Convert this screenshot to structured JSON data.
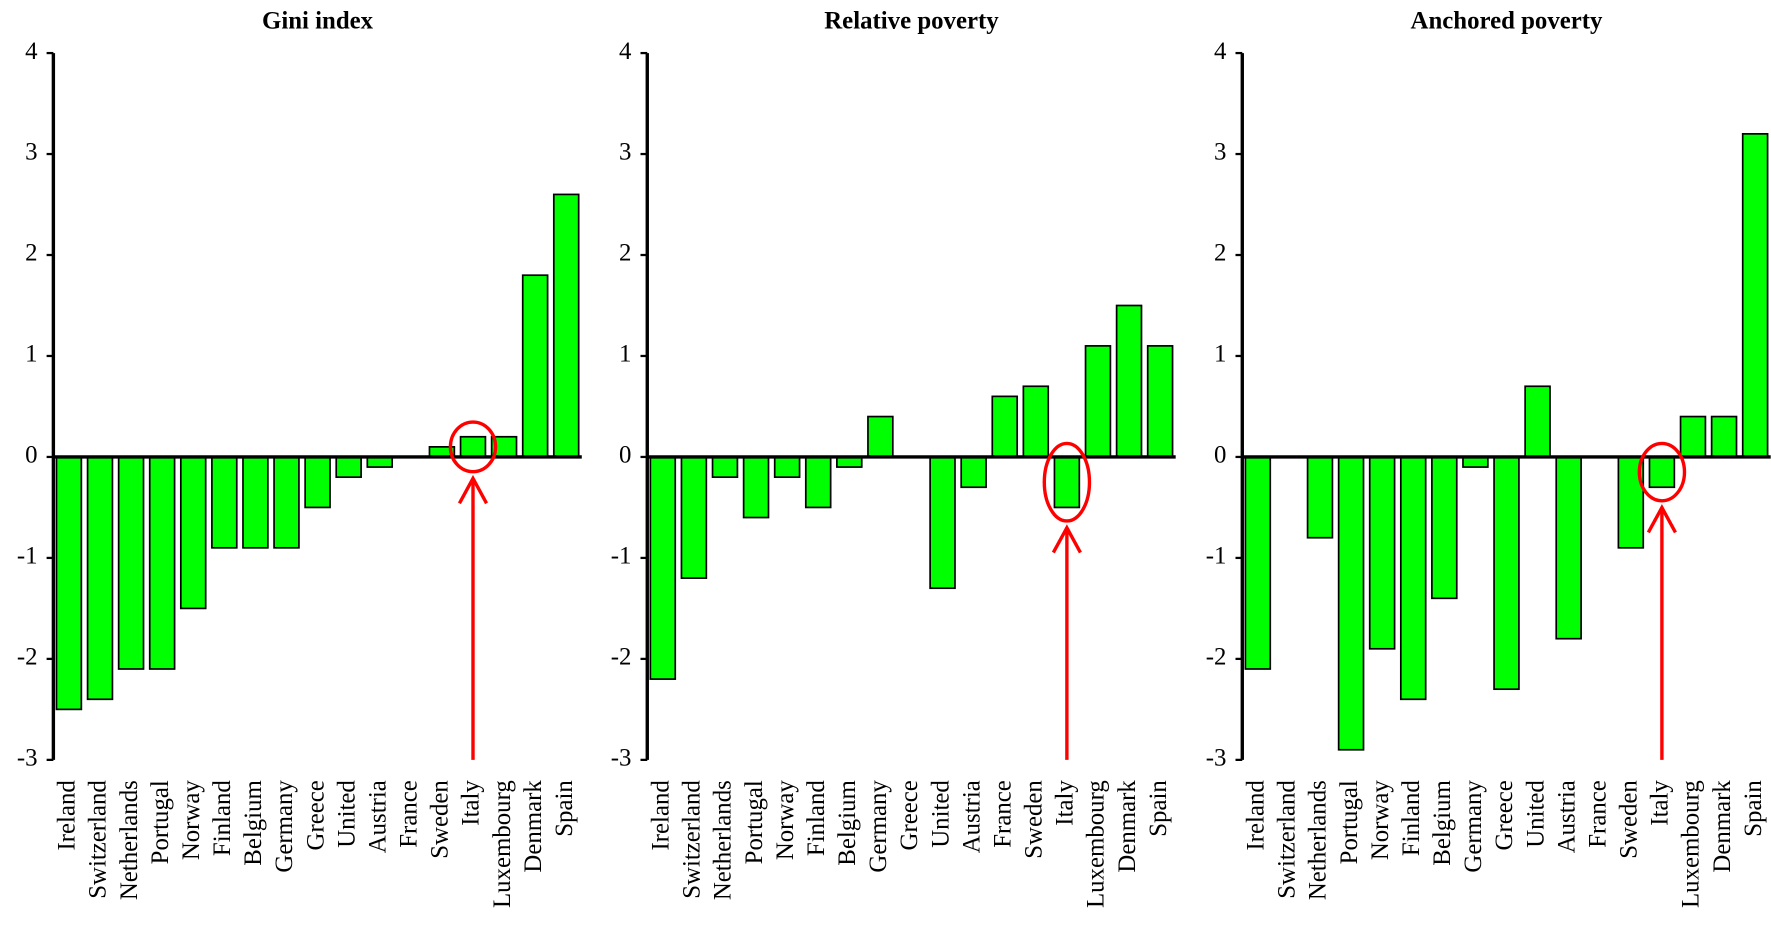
{
  "chart_data": [
    {
      "type": "bar",
      "title": "Gini index",
      "categories": [
        "Ireland",
        "Switzerland",
        "Netherlands",
        "Portugal",
        "Norway",
        "Finland",
        "Belgium",
        "Germany",
        "Greece",
        "United",
        "Austria",
        "France",
        "Sweden",
        "Italy",
        "Luxembourg",
        "Denmark",
        "Spain"
      ],
      "values": [
        -2.5,
        -2.4,
        -2.1,
        -2.1,
        -1.5,
        -0.9,
        -0.9,
        -0.9,
        -0.5,
        -0.2,
        -0.1,
        0,
        0.1,
        0.2,
        0.2,
        1.8,
        2.6
      ],
      "color": "#00ff00",
      "ylim": [
        -3,
        4
      ],
      "yticks": [
        -3,
        -2,
        -1,
        0,
        1,
        2,
        3,
        4
      ]
    },
    {
      "type": "bar",
      "title": "Relative poverty",
      "categories": [
        "Ireland",
        "Switzerland",
        "Netherlands",
        "Portugal",
        "Norway",
        "Finland",
        "Belgium",
        "Germany",
        "Greece",
        "United",
        "Austria",
        "France",
        "Sweden",
        "Italy",
        "Luxembourg",
        "Denmark",
        "Spain"
      ],
      "values": [
        -2.2,
        -1.2,
        -0.2,
        -0.6,
        -0.2,
        -0.5,
        -0.1,
        0.4,
        0,
        -1.3,
        -0.3,
        0.6,
        0.7,
        -0.5,
        1.1,
        1.5,
        1.1
      ],
      "color": "#00ff00",
      "ylim": [
        -3,
        4
      ],
      "yticks": [
        -3,
        -2,
        -1,
        0,
        1,
        2,
        3,
        4
      ]
    },
    {
      "type": "bar",
      "title": "Anchored poverty",
      "categories": [
        "Ireland",
        "Switzerland",
        "Netherlands",
        "Portugal",
        "Norway",
        "Finland",
        "Belgium",
        "Germany",
        "Greece",
        "United",
        "Austria",
        "France",
        "Sweden",
        "Italy",
        "Luxembourg",
        "Denmark",
        "Spain"
      ],
      "values": [
        -2.1,
        0,
        -0.8,
        -2.9,
        -1.9,
        -2.4,
        -1.4,
        -0.1,
        -2.3,
        0.7,
        -1.8,
        0,
        -0.9,
        -0.3,
        0.4,
        0.4,
        3.2
      ],
      "color": "#00ff00",
      "ylim": [
        -3,
        4
      ],
      "yticks": [
        -3,
        -2,
        -1,
        0,
        1,
        2,
        3,
        4
      ]
    }
  ]
}
